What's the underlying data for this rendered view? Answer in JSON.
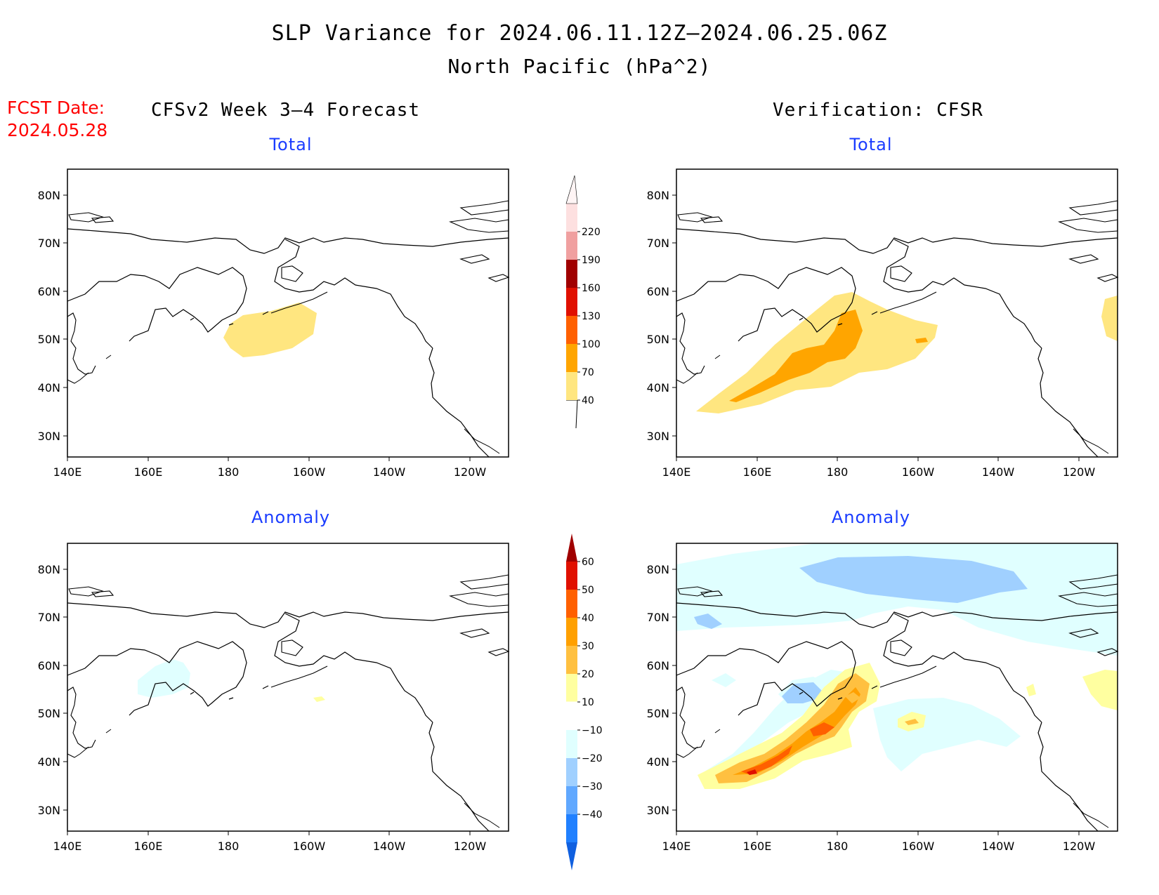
{
  "title": "SLP Variance for 2024.06.11.12Z–2024.06.25.06Z",
  "subtitle": "North Pacific (hPa^2)",
  "fcst_date": {
    "label": "FCST Date:",
    "value": "2024.05.28"
  },
  "columns": {
    "left": "CFSv2 Week 3–4 Forecast",
    "right": "Verification: CFSR"
  },
  "panels": [
    {
      "id": "forecast-total",
      "title": "Total"
    },
    {
      "id": "verification-total",
      "title": "Total"
    },
    {
      "id": "forecast-anomaly",
      "title": "Anomaly"
    },
    {
      "id": "verification-anomaly",
      "title": "Anomaly"
    }
  ],
  "map_axes": {
    "lat_ticks": [
      "80N",
      "70N",
      "60N",
      "50N",
      "40N",
      "30N"
    ],
    "lon_ticks": [
      "140E",
      "160E",
      "180",
      "160W",
      "140W",
      "120W"
    ],
    "lat_range": [
      25,
      85
    ],
    "lon_range": [
      "140E",
      "110W"
    ]
  },
  "colorbars": {
    "total": {
      "levels": [
        "40",
        "70",
        "100",
        "130",
        "160",
        "190",
        "220"
      ],
      "colors": [
        "#ffe680",
        "#ffa500",
        "#ff6000",
        "#e01000",
        "#a00000",
        "#f0a0a0",
        "#fde0e0"
      ]
    },
    "anomaly": {
      "levels": [
        "60",
        "50",
        "40",
        "30",
        "20",
        "10",
        "−10",
        "−20",
        "−30",
        "−40"
      ],
      "colors": [
        "#a00000",
        "#e01000",
        "#ff6000",
        "#ffa000",
        "#ffc040",
        "#ffffa0",
        "#ffffff",
        "#e0ffff",
        "#a0d0ff",
        "#60a8ff",
        "#2080ff",
        "#1060e0"
      ]
    }
  },
  "colors": {
    "title_text": "#000000",
    "fcst_text": "#ff0000",
    "panel_title": "#1a3cff",
    "coast": "#000000"
  }
}
